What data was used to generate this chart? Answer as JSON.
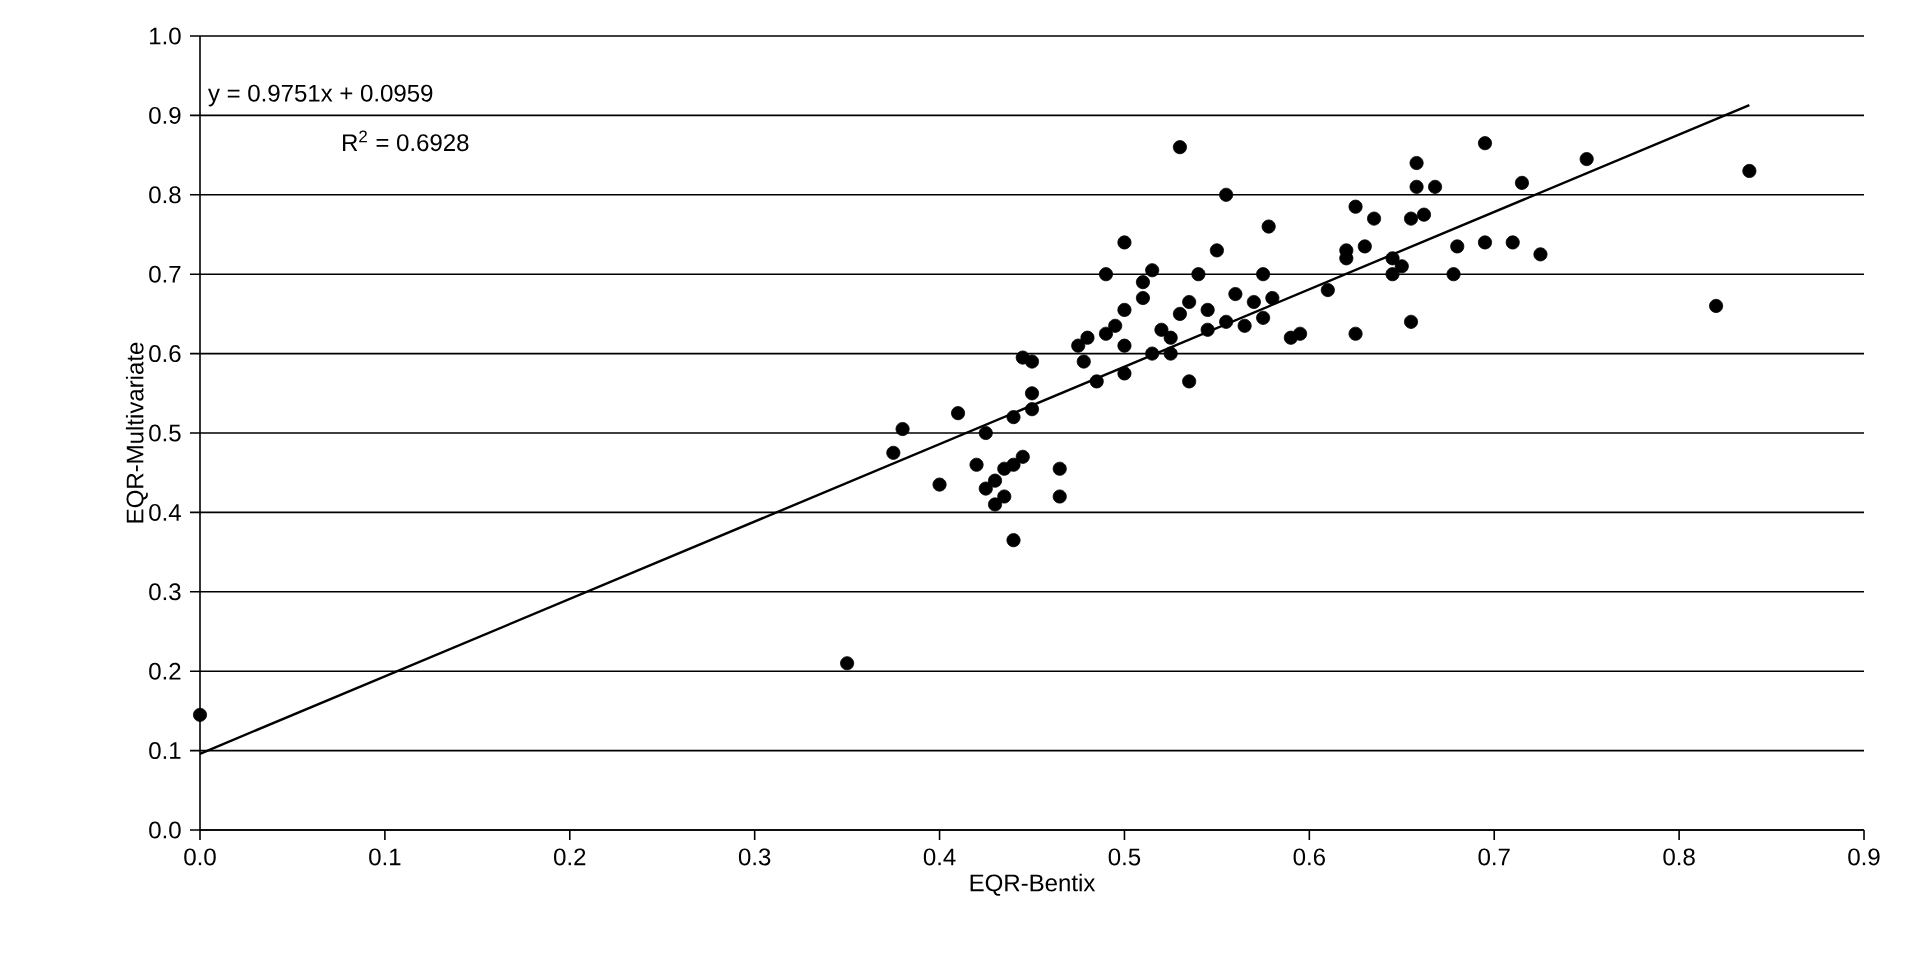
{
  "chart_data": {
    "type": "scatter",
    "xlabel": "EQR-Bentix",
    "ylabel": "EQR-Multivariate",
    "xlim": [
      0,
      0.9
    ],
    "ylim": [
      0,
      1.0
    ],
    "xticks": [
      {
        "value": 0,
        "label": "0.0"
      },
      0.1,
      0.2,
      0.3,
      0.4,
      0.5,
      0.6,
      0.7,
      0.8,
      0.9
    ],
    "yticks": [
      {
        "value": 0,
        "label": "0.0"
      },
      0.1,
      0.2,
      0.3,
      0.4,
      0.5,
      0.6,
      0.7,
      0.8,
      0.9,
      {
        "value": 1,
        "label": "1.0"
      }
    ],
    "grid": "y",
    "annotations": [
      "y = 0.9751x + 0.0959",
      "R$^{2}$ = 0.6928"
    ],
    "series": [
      {
        "color": "#000000",
        "marker": "circle",
        "x": [
          0.0,
          0.35,
          0.375,
          0.38,
          0.4,
          0.41,
          0.42,
          0.425,
          0.425,
          0.43,
          0.43,
          0.435,
          0.435,
          0.44,
          0.44,
          0.44,
          0.445,
          0.445,
          0.45,
          0.45,
          0.45,
          0.465,
          0.465,
          0.475,
          0.478,
          0.48,
          0.485,
          0.49,
          0.49,
          0.495,
          0.5,
          0.5,
          0.5,
          0.5,
          0.51,
          0.51,
          0.515,
          0.515,
          0.52,
          0.525,
          0.525,
          0.53,
          0.53,
          0.535,
          0.535,
          0.54,
          0.545,
          0.545,
          0.55,
          0.555,
          0.555,
          0.56,
          0.565,
          0.57,
          0.575,
          0.575,
          0.578,
          0.58,
          0.59,
          0.595,
          0.61,
          0.62,
          0.62,
          0.625,
          0.625,
          0.63,
          0.635,
          0.645,
          0.645,
          0.65,
          0.655,
          0.655,
          0.658,
          0.658,
          0.662,
          0.668,
          0.678,
          0.68,
          0.695,
          0.695,
          0.71,
          0.715,
          0.725,
          0.75,
          0.82,
          0.838
        ],
        "values": [
          0.145,
          0.21,
          0.475,
          0.505,
          0.435,
          0.525,
          0.46,
          0.43,
          0.5,
          0.41,
          0.44,
          0.42,
          0.455,
          0.365,
          0.52,
          0.46,
          0.47,
          0.595,
          0.53,
          0.59,
          0.55,
          0.455,
          0.42,
          0.61,
          0.59,
          0.62,
          0.565,
          0.625,
          0.7,
          0.635,
          0.74,
          0.655,
          0.61,
          0.575,
          0.69,
          0.67,
          0.705,
          0.6,
          0.63,
          0.62,
          0.6,
          0.86,
          0.65,
          0.665,
          0.565,
          0.7,
          0.63,
          0.655,
          0.73,
          0.8,
          0.64,
          0.675,
          0.635,
          0.665,
          0.645,
          0.7,
          0.76,
          0.67,
          0.62,
          0.625,
          0.68,
          0.72,
          0.73,
          0.785,
          0.625,
          0.735,
          0.77,
          0.7,
          0.72,
          0.71,
          0.64,
          0.77,
          0.81,
          0.84,
          0.775,
          0.81,
          0.7,
          0.735,
          0.74,
          0.865,
          0.74,
          0.815,
          0.725,
          0.845,
          0.66,
          0.83
        ]
      },
      {
        "type": "line",
        "color": "#000000",
        "marker": "none",
        "line_style": "solid",
        "x": [
          0,
          0.838
        ],
        "values": [
          0.096,
          0.913
        ]
      }
    ]
  }
}
